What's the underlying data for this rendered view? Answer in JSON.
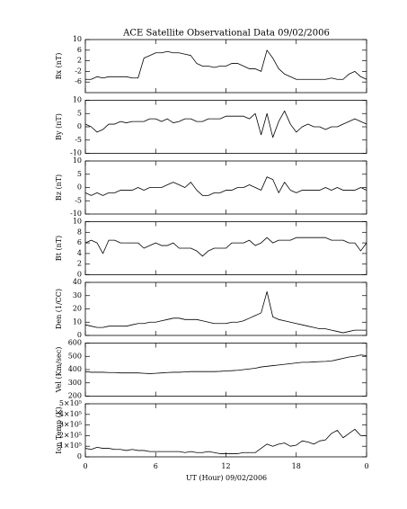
{
  "figure": {
    "title": "ACE Satellite Observational Data   09/02/2006",
    "xlabel": "UT (Hour)   09/02/2006"
  },
  "chart_data": [
    {
      "type": "line",
      "ylabel": "Bx (nT)",
      "color": "#000000",
      "x": [
        0,
        0.5,
        1,
        1.5,
        2,
        2.5,
        3,
        3.5,
        4,
        4.5,
        5,
        5.5,
        6,
        6.5,
        7,
        7.5,
        8,
        8.5,
        9,
        9.5,
        10,
        10.5,
        11,
        11.5,
        12,
        12.5,
        13,
        13.5,
        14,
        14.5,
        15,
        15.5,
        16,
        16.5,
        17,
        17.5,
        18,
        18.5,
        19,
        19.5,
        20,
        20.5,
        21,
        21.5,
        22,
        22.5,
        23,
        23.5,
        24
      ],
      "values": [
        -5,
        -5,
        -4,
        -4.5,
        -4,
        -4,
        -4,
        -4,
        -4.5,
        -4.5,
        3,
        4,
        5,
        5,
        5.5,
        5,
        5,
        4.5,
        4,
        1,
        0,
        0,
        -0.5,
        0,
        0,
        1,
        1,
        0,
        -1,
        -1,
        -2,
        6,
        3,
        -1,
        -3,
        -4,
        -5,
        -5,
        -5,
        -5,
        -5,
        -5,
        -4.5,
        -5,
        -5,
        -3,
        -2,
        -4,
        -5
      ],
      "xlim": [
        0,
        24
      ],
      "xticks": [
        0,
        6,
        12,
        18,
        {
          "value": 24,
          "label": "0"
        }
      ],
      "ylim": [
        -10,
        10
      ],
      "yticks": [
        -6,
        -2,
        2,
        6,
        10
      ]
    },
    {
      "type": "line",
      "ylabel": "By (nT)",
      "color": "#000000",
      "x": [
        0,
        0.5,
        1,
        1.5,
        2,
        2.5,
        3,
        3.5,
        4,
        4.5,
        5,
        5.5,
        6,
        6.5,
        7,
        7.5,
        8,
        8.5,
        9,
        9.5,
        10,
        10.5,
        11,
        11.5,
        12,
        12.5,
        13,
        13.5,
        14,
        14.5,
        15,
        15.5,
        16,
        16.5,
        17,
        17.5,
        18,
        18.5,
        19,
        19.5,
        20,
        20.5,
        21,
        21.5,
        22,
        22.5,
        23,
        23.5,
        24
      ],
      "values": [
        1,
        0,
        -2,
        -1,
        1,
        1,
        2,
        1.5,
        2,
        2,
        2,
        3,
        3,
        2,
        3,
        1.5,
        2,
        3,
        3,
        2,
        2,
        3,
        3,
        3,
        4,
        4,
        4,
        4,
        3,
        5,
        -3,
        5,
        -4,
        2,
        6,
        1,
        -2,
        0,
        1,
        0,
        0,
        -1,
        0,
        0,
        1,
        2,
        3,
        2,
        1
      ],
      "xlim": [
        0,
        24
      ],
      "xticks": [
        0,
        6,
        12,
        18,
        {
          "value": 24,
          "label": "0"
        }
      ],
      "ylim": [
        -10,
        10
      ],
      "yticks": [
        -10,
        -5,
        0,
        5,
        10
      ]
    },
    {
      "type": "line",
      "ylabel": "Bz (nT)",
      "color": "#000000",
      "x": [
        0,
        0.5,
        1,
        1.5,
        2,
        2.5,
        3,
        3.5,
        4,
        4.5,
        5,
        5.5,
        6,
        6.5,
        7,
        7.5,
        8,
        8.5,
        9,
        9.5,
        10,
        10.5,
        11,
        11.5,
        12,
        12.5,
        13,
        13.5,
        14,
        14.5,
        15,
        15.5,
        16,
        16.5,
        17,
        17.5,
        18,
        18.5,
        19,
        19.5,
        20,
        20.5,
        21,
        21.5,
        22,
        22.5,
        23,
        23.5,
        24
      ],
      "values": [
        -2,
        -3,
        -2,
        -3,
        -2,
        -2,
        -1,
        -1,
        -1,
        0,
        -1,
        0,
        0,
        0,
        1,
        2,
        1,
        0,
        2,
        -1,
        -3,
        -3,
        -2,
        -2,
        -1,
        -1,
        0,
        0,
        1,
        0,
        -1,
        4,
        3,
        -2,
        2,
        -1,
        -2,
        -1,
        -1,
        -1,
        -1,
        0,
        -1,
        0,
        -1,
        -1,
        -1,
        0,
        -1
      ],
      "xlim": [
        0,
        24
      ],
      "xticks": [
        0,
        6,
        12,
        18,
        {
          "value": 24,
          "label": "0"
        }
      ],
      "ylim": [
        -10,
        10
      ],
      "yticks": [
        -10,
        -5,
        0,
        5,
        10
      ]
    },
    {
      "type": "line",
      "ylabel": "Bt (nT)",
      "color": "#000000",
      "x": [
        0,
        0.5,
        1,
        1.5,
        2,
        2.5,
        3,
        3.5,
        4,
        4.5,
        5,
        5.5,
        6,
        6.5,
        7,
        7.5,
        8,
        8.5,
        9,
        9.5,
        10,
        10.5,
        11,
        11.5,
        12,
        12.5,
        13,
        13.5,
        14,
        14.5,
        15,
        15.5,
        16,
        16.5,
        17,
        17.5,
        18,
        18.5,
        19,
        19.5,
        20,
        20.5,
        21,
        21.5,
        22,
        22.5,
        23,
        23.5,
        24
      ],
      "values": [
        6,
        6.5,
        6,
        4,
        6.5,
        6.5,
        6,
        6,
        6,
        6,
        5,
        5.5,
        6,
        5.5,
        5.5,
        6,
        5,
        5,
        5,
        4.5,
        3.5,
        4.5,
        5,
        5,
        5,
        6,
        6,
        6,
        6.5,
        5.5,
        6,
        7,
        6,
        6.5,
        6.5,
        6.5,
        7,
        7,
        7,
        7,
        7,
        7,
        6.5,
        6.5,
        6.5,
        6,
        6,
        4.5,
        6
      ],
      "xlim": [
        0,
        24
      ],
      "xticks": [
        0,
        6,
        12,
        18,
        {
          "value": 24,
          "label": "0"
        }
      ],
      "ylim": [
        0,
        10
      ],
      "yticks": [
        0,
        2,
        4,
        6,
        8,
        10
      ]
    },
    {
      "type": "line",
      "ylabel": "Den (1/CC)",
      "color": "#000000",
      "x": [
        0,
        0.5,
        1,
        1.5,
        2,
        2.5,
        3,
        3.5,
        4,
        4.5,
        5,
        5.5,
        6,
        6.5,
        7,
        7.5,
        8,
        8.5,
        9,
        9.5,
        10,
        10.5,
        11,
        11.5,
        12,
        12.5,
        13,
        13.5,
        14,
        14.5,
        15,
        15.5,
        16,
        16.5,
        17,
        17.5,
        18,
        18.5,
        19,
        19.5,
        20,
        20.5,
        21,
        21.5,
        22,
        22.5,
        23,
        23.5,
        24
      ],
      "values": [
        8,
        7,
        6,
        6,
        7,
        7,
        7,
        7,
        8,
        9,
        9,
        10,
        10,
        11,
        12,
        13,
        13,
        12,
        12,
        12,
        11,
        10,
        9,
        9,
        9,
        10,
        10,
        11,
        13,
        15,
        17,
        33,
        14,
        12,
        11,
        10,
        9,
        8,
        7,
        6,
        5,
        5,
        4,
        3,
        2,
        3,
        4,
        4,
        4
      ],
      "xlim": [
        0,
        24
      ],
      "xticks": [
        0,
        6,
        12,
        18,
        {
          "value": 24,
          "label": "0"
        }
      ],
      "ylim": [
        0,
        40
      ],
      "yticks": [
        0,
        10,
        20,
        30,
        40
      ]
    },
    {
      "type": "line",
      "ylabel": "Vel (Km/sec)",
      "color": "#000000",
      "x": [
        0,
        0.5,
        1,
        1.5,
        2,
        2.5,
        3,
        3.5,
        4,
        4.5,
        5,
        5.5,
        6,
        6.5,
        7,
        7.5,
        8,
        8.5,
        9,
        9.5,
        10,
        10.5,
        11,
        11.5,
        12,
        12.5,
        13,
        13.5,
        14,
        14.5,
        15,
        15.5,
        16,
        16.5,
        17,
        17.5,
        18,
        18.5,
        19,
        19.5,
        20,
        20.5,
        21,
        21.5,
        22,
        22.5,
        23,
        23.5,
        24
      ],
      "values": [
        385,
        380,
        380,
        380,
        378,
        378,
        375,
        375,
        375,
        375,
        372,
        370,
        372,
        375,
        378,
        380,
        380,
        382,
        385,
        385,
        385,
        385,
        385,
        387,
        390,
        392,
        395,
        400,
        405,
        410,
        420,
        425,
        430,
        435,
        440,
        445,
        450,
        455,
        455,
        458,
        460,
        462,
        465,
        475,
        485,
        495,
        500,
        510,
        505
      ],
      "xlim": [
        0,
        24
      ],
      "xticks": [
        0,
        6,
        12,
        18,
        {
          "value": 24,
          "label": "0"
        }
      ],
      "ylim": [
        200,
        600
      ],
      "yticks": [
        200,
        300,
        400,
        500,
        600
      ]
    },
    {
      "type": "line",
      "ylabel": "Ion Temp (K)",
      "color": "#000000",
      "x": [
        0,
        0.5,
        1,
        1.5,
        2,
        2.5,
        3,
        3.5,
        4,
        4.5,
        5,
        5.5,
        6,
        6.5,
        7,
        7.5,
        8,
        8.5,
        9,
        9.5,
        10,
        10.5,
        11,
        11.5,
        12,
        12.5,
        13,
        13.5,
        14,
        14.5,
        15,
        15.5,
        16,
        16.5,
        17,
        17.5,
        18,
        18.5,
        19,
        19.5,
        20,
        20.5,
        21,
        21.5,
        22,
        22.5,
        23,
        23.5,
        24
      ],
      "values": [
        80000,
        70000,
        90000,
        80000,
        80000,
        70000,
        70000,
        60000,
        70000,
        60000,
        60000,
        50000,
        50000,
        50000,
        50000,
        50000,
        50000,
        40000,
        50000,
        40000,
        40000,
        50000,
        40000,
        30000,
        30000,
        30000,
        30000,
        40000,
        40000,
        40000,
        80000,
        120000,
        100000,
        120000,
        130000,
        100000,
        110000,
        150000,
        140000,
        120000,
        150000,
        160000,
        220000,
        250000,
        180000,
        220000,
        260000,
        200000,
        200000
      ],
      "xlim": [
        0,
        24
      ],
      "xticks": [
        0,
        6,
        12,
        18,
        {
          "value": 24,
          "label": "0"
        }
      ],
      "ylim": [
        0,
        500000
      ],
      "yticks": [
        0,
        {
          "value": 100000,
          "label": "1×10⁵"
        },
        {
          "value": 200000,
          "label": "2×10⁵"
        },
        {
          "value": 300000,
          "label": "3×10⁵"
        },
        {
          "value": 400000,
          "label": "4×10⁵"
        },
        {
          "value": 500000,
          "label": "5×10⁵"
        }
      ]
    }
  ]
}
